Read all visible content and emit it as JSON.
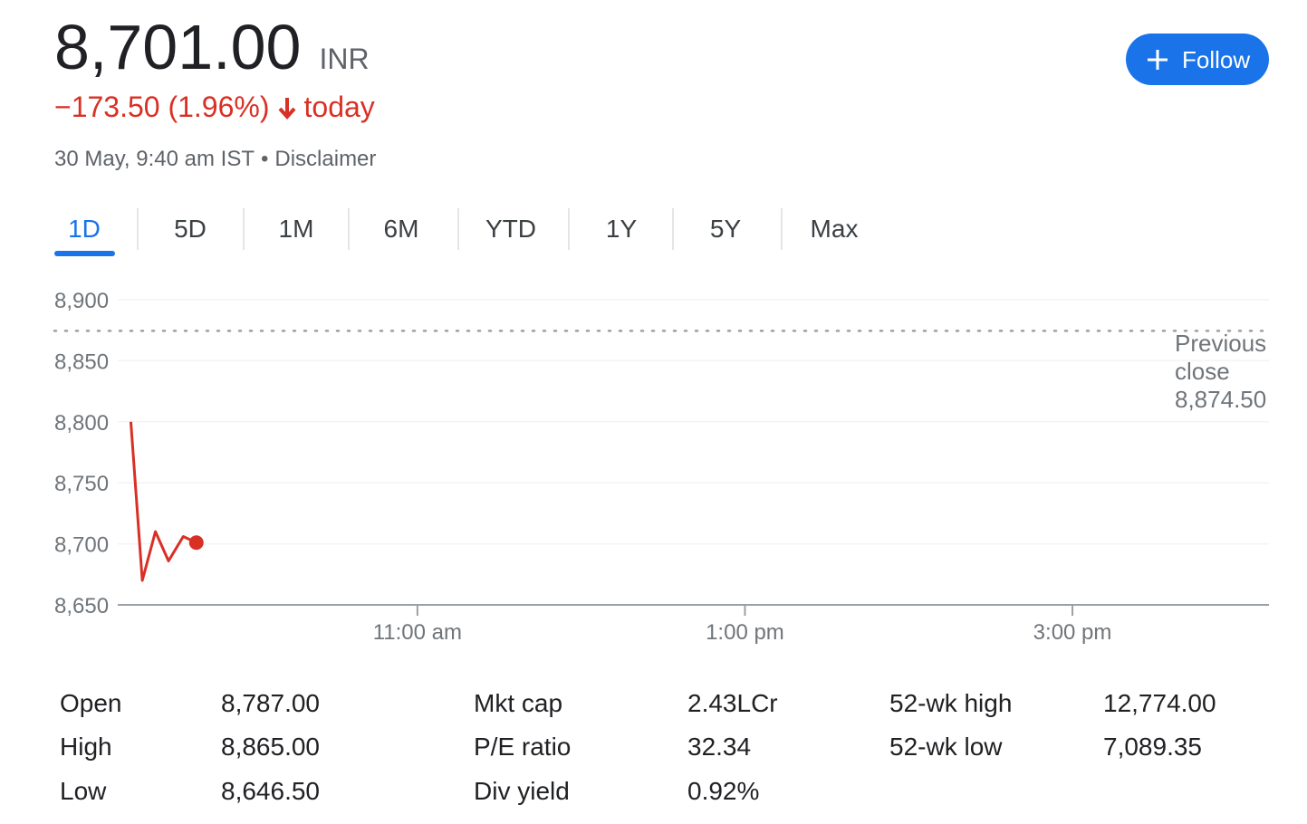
{
  "header": {
    "price": "8,701.00",
    "currency": "INR",
    "change": "−173.50 (1.96%)",
    "change_suffix": "today",
    "timestamp": "30 May, 9:40 am IST",
    "separator": "•",
    "disclaimer": "Disclaimer"
  },
  "follow_button": "Follow",
  "tabs": [
    "1D",
    "5D",
    "1M",
    "6M",
    "YTD",
    "1Y",
    "5Y",
    "Max"
  ],
  "chart_data": {
    "type": "line",
    "x": [
      9.25,
      9.32,
      9.4,
      9.48,
      9.57,
      9.65
    ],
    "values": [
      8800,
      8670,
      8710,
      8686,
      8706,
      8701
    ],
    "color": "#d93025",
    "xlim": [
      9.17,
      16.2
    ],
    "xticks": [
      {
        "value": 11,
        "label": "11:00 am"
      },
      {
        "value": 13,
        "label": "1:00 pm"
      },
      {
        "value": 15,
        "label": "3:00 pm"
      }
    ],
    "ylim": [
      8650,
      8900
    ],
    "yticks": [
      {
        "value": 8650,
        "label": "8,650"
      },
      {
        "value": 8700,
        "label": "8,700"
      },
      {
        "value": 8750,
        "label": "8,750"
      },
      {
        "value": 8800,
        "label": "8,800"
      },
      {
        "value": 8850,
        "label": "8,850"
      },
      {
        "value": 8900,
        "label": "8,900"
      }
    ],
    "grid": true,
    "previous_close": {
      "label": "Previous close",
      "value": 8874.5,
      "value_label": "8,874.50"
    }
  },
  "stats": {
    "rows": [
      [
        "Open",
        "8,787.00",
        "Mkt cap",
        "2.43LCr",
        "52-wk high",
        "12,774.00"
      ],
      [
        "High",
        "8,865.00",
        "P/E ratio",
        "32.34",
        "52-wk low",
        "7,089.35"
      ],
      [
        "Low",
        "8,646.50",
        "Div yield",
        "0.92%"
      ]
    ]
  }
}
